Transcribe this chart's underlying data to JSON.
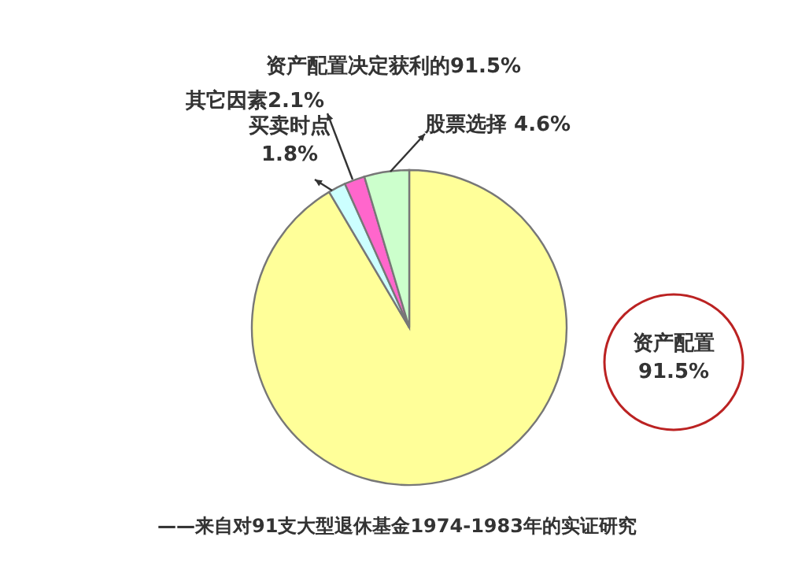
{
  "chart_data": {
    "type": "pie",
    "title": "资产配置决定获利的91.5%",
    "categories": [
      "资产配置",
      "买卖时点",
      "其它因素",
      "股票选择"
    ],
    "values": [
      91.5,
      1.8,
      2.1,
      4.6
    ],
    "colors": [
      "#ffff99",
      "#ccffff",
      "#ff66cc",
      "#ccffcc"
    ],
    "value_labels": [
      "91.5%",
      "1.8%",
      "2.1%",
      "4.6%"
    ],
    "annotations": [
      "——来自对91支大型退休基金1974-1983年的实证研究"
    ]
  }
}
